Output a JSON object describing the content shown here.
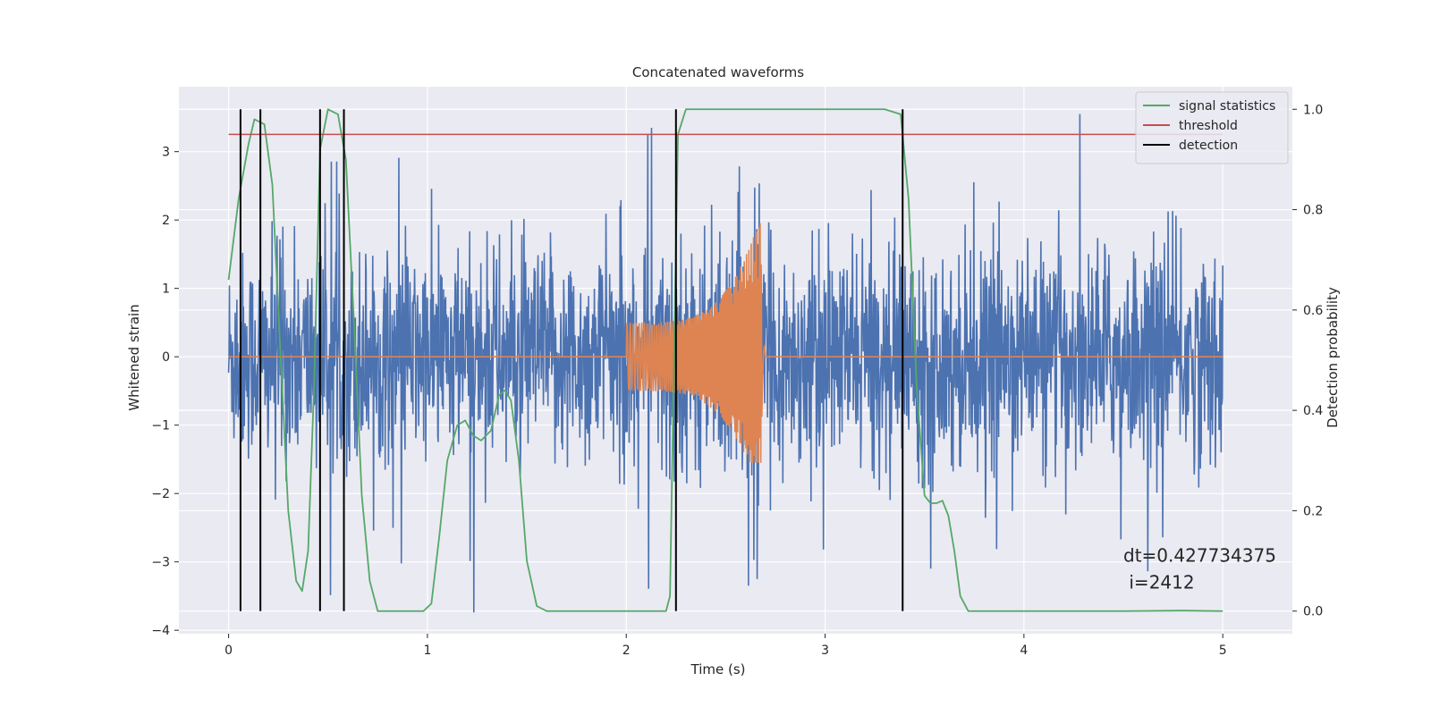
{
  "chart_data": {
    "type": "line",
    "title": "Concatenated waveforms",
    "xlabel": "Time (s)",
    "ylabel": "Whitened strain",
    "y2label": "Detection probability",
    "xlim": [
      -0.25,
      5.35
    ],
    "ylim": [
      -4.05,
      3.95
    ],
    "y2lim": [
      -0.045,
      1.045
    ],
    "xticks": [
      0,
      1,
      2,
      3,
      4,
      5
    ],
    "xtick_labels": [
      "0",
      "1",
      "2",
      "3",
      "4",
      "5"
    ],
    "yticks": [
      -4,
      -3,
      -2,
      -1,
      0,
      1,
      2,
      3
    ],
    "ytick_labels": [
      "−4",
      "−3",
      "−2",
      "−1",
      "0",
      "1",
      "2",
      "3"
    ],
    "y2ticks": [
      0.0,
      0.2,
      0.4,
      0.6,
      0.8,
      1.0
    ],
    "y2tick_labels": [
      "0.0",
      "0.2",
      "0.4",
      "0.6",
      "0.8",
      "1.0"
    ],
    "grid": true,
    "legend_position": "top-right",
    "background_color": "#eaeaf2",
    "series": [
      {
        "name": "",
        "role": "whitened strain (noise + signal)",
        "color": "#4c72b0",
        "axis": "left",
        "x_range": [
          0,
          5
        ],
        "typical_amplitude": 0.9,
        "peak_amplitude": 3.55
      },
      {
        "name": "",
        "role": "injected chirp waveform",
        "color": "#dd8452",
        "axis": "left",
        "x_range": [
          0,
          5
        ],
        "chirp_start": 2.0,
        "chirp_merger": 2.68,
        "start_amplitude": 0.5,
        "peak_amplitude_up": 2.1,
        "peak_amplitude_down": -1.55
      },
      {
        "name": "signal statistics",
        "color": "#55a868",
        "axis": "right",
        "x": [
          0.0,
          0.05,
          0.1,
          0.13,
          0.18,
          0.22,
          0.26,
          0.3,
          0.34,
          0.37,
          0.4,
          0.43,
          0.46,
          0.5,
          0.55,
          0.59,
          0.63,
          0.67,
          0.71,
          0.75,
          0.8,
          0.9,
          0.98,
          1.02,
          1.06,
          1.1,
          1.15,
          1.19,
          1.23,
          1.27,
          1.32,
          1.36,
          1.39,
          1.42,
          1.46,
          1.5,
          1.55,
          1.6,
          1.8,
          2.0,
          2.2,
          2.22,
          2.24,
          2.26,
          2.3,
          2.5,
          3.0,
          3.3,
          3.38,
          3.42,
          3.46,
          3.5,
          3.53,
          3.56,
          3.59,
          3.62,
          3.65,
          3.68,
          3.72,
          4.0,
          4.5,
          4.8,
          5.0
        ],
        "y": [
          0.66,
          0.82,
          0.93,
          0.98,
          0.97,
          0.85,
          0.52,
          0.2,
          0.06,
          0.04,
          0.12,
          0.45,
          0.92,
          1.0,
          0.99,
          0.9,
          0.58,
          0.23,
          0.06,
          0.0,
          0.0,
          0.0,
          0.0,
          0.015,
          0.15,
          0.3,
          0.37,
          0.38,
          0.35,
          0.34,
          0.36,
          0.43,
          0.44,
          0.42,
          0.3,
          0.1,
          0.01,
          0.0,
          0.0,
          0.0,
          0.0,
          0.03,
          0.5,
          0.95,
          1.0,
          1.0,
          1.0,
          1.0,
          0.99,
          0.82,
          0.45,
          0.23,
          0.215,
          0.215,
          0.22,
          0.19,
          0.12,
          0.03,
          0.0,
          0.0,
          0.0,
          0.001,
          0.0
        ]
      },
      {
        "name": "threshold",
        "color": "#c44e52",
        "axis": "right",
        "x": [
          0.0,
          5.0
        ],
        "y": [
          0.95,
          0.95
        ]
      },
      {
        "name": "detection",
        "color": "#000000",
        "axis": "right",
        "type": "vlines",
        "x": [
          0.06,
          0.16,
          0.46,
          0.58,
          2.25,
          3.39
        ],
        "ymin": 0.0,
        "ymax": 1.0
      }
    ],
    "annotation": {
      "lines": [
        "dt=0.427734375",
        " i=2412"
      ],
      "x": 4.5,
      "y": -3.0
    }
  }
}
